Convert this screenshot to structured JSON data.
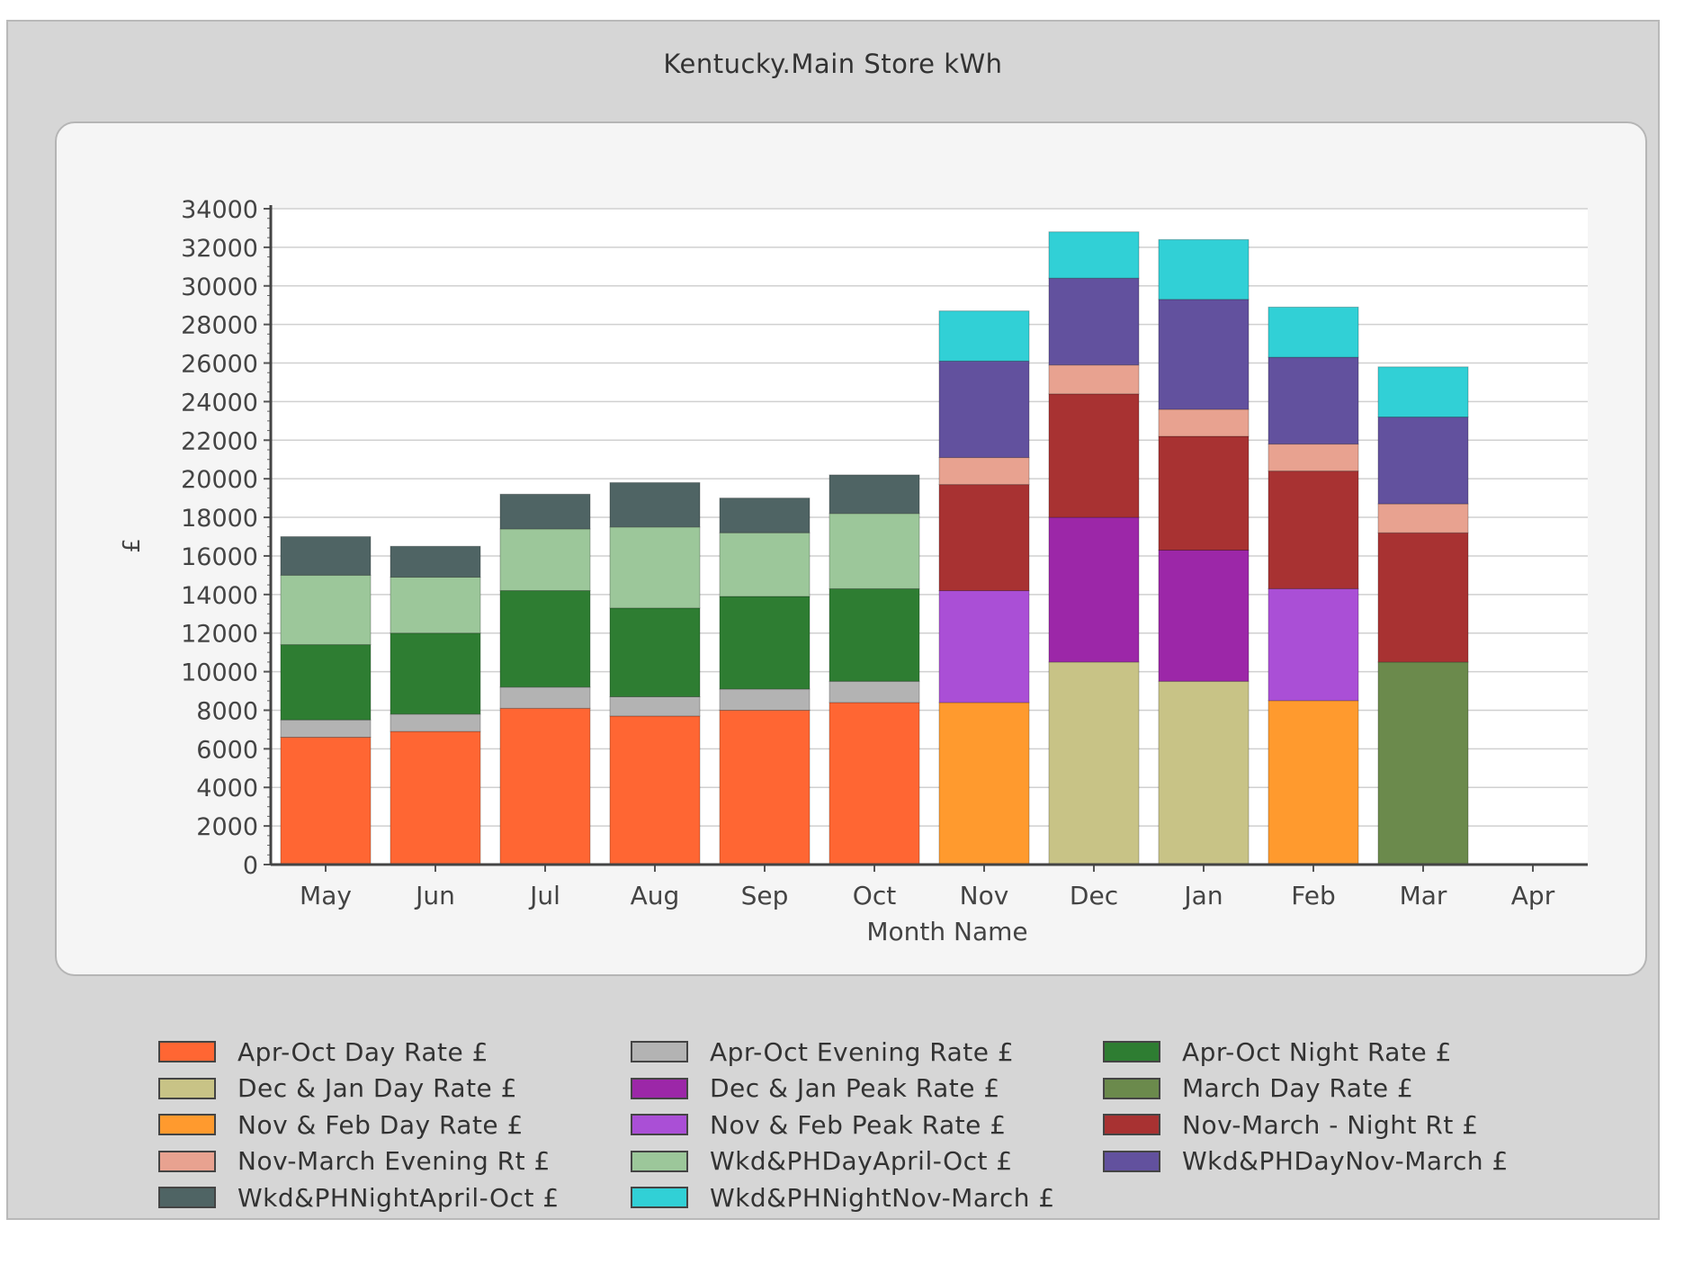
{
  "chart_data": {
    "type": "bar",
    "stacked": true,
    "title": "Kentucky.Main Store kWh",
    "xlabel": "Month Name",
    "ylabel": "£",
    "ylim": [
      0,
      34000
    ],
    "yticks": [
      0,
      2000,
      4000,
      6000,
      8000,
      10000,
      12000,
      14000,
      16000,
      18000,
      20000,
      22000,
      24000,
      26000,
      28000,
      30000,
      32000,
      34000
    ],
    "grid": true,
    "legend_position": "bottom",
    "categories": [
      "May",
      "Jun",
      "Jul",
      "Aug",
      "Sep",
      "Oct",
      "Nov",
      "Dec",
      "Jan",
      "Feb",
      "Mar",
      "Apr"
    ],
    "series": [
      {
        "name": "Apr-Oct Day Rate £",
        "color": "#ff6633",
        "values": [
          6600,
          6900,
          8100,
          7700,
          8000,
          8400,
          0,
          0,
          0,
          0,
          0,
          0
        ]
      },
      {
        "name": "Apr-Oct Evening Rate £",
        "color": "#b3b3b3",
        "values": [
          900,
          900,
          1100,
          1000,
          1100,
          1100,
          0,
          0,
          0,
          0,
          0,
          0
        ]
      },
      {
        "name": "Apr-Oct Night Rate £",
        "color": "#2e7d32",
        "values": [
          3900,
          4200,
          5000,
          4600,
          4800,
          4800,
          0,
          0,
          0,
          0,
          0,
          0
        ]
      },
      {
        "name": "Dec & Jan Day Rate £",
        "color": "#c8c386",
        "values": [
          0,
          0,
          0,
          0,
          0,
          0,
          0,
          10500,
          9500,
          0,
          0,
          0
        ]
      },
      {
        "name": "Dec & Jan Peak Rate £",
        "color": "#9c27a8",
        "values": [
          0,
          0,
          0,
          0,
          0,
          0,
          0,
          7500,
          6800,
          0,
          0,
          0
        ]
      },
      {
        "name": "March Day Rate £",
        "color": "#6b8a4c",
        "values": [
          0,
          0,
          0,
          0,
          0,
          0,
          0,
          0,
          0,
          0,
          10500,
          0
        ]
      },
      {
        "name": "Nov & Feb Day Rate £",
        "color": "#ff9a2e",
        "values": [
          0,
          0,
          0,
          0,
          0,
          0,
          8400,
          0,
          0,
          8500,
          0,
          0
        ]
      },
      {
        "name": "Nov & Feb Peak Rate £",
        "color": "#aa4fd6",
        "values": [
          0,
          0,
          0,
          0,
          0,
          0,
          5800,
          0,
          0,
          5800,
          0,
          0
        ]
      },
      {
        "name": "Nov-March - Night Rt £",
        "color": "#a83232",
        "values": [
          0,
          0,
          0,
          0,
          0,
          0,
          5500,
          6400,
          5900,
          6100,
          6700,
          0
        ]
      },
      {
        "name": "Nov-March Evening Rt £",
        "color": "#e8a290",
        "values": [
          0,
          0,
          0,
          0,
          0,
          0,
          1400,
          1500,
          1400,
          1400,
          1500,
          0
        ]
      },
      {
        "name": "Wkd&PHDayApril-Oct £",
        "color": "#9cc79a",
        "values": [
          3600,
          2900,
          3200,
          4200,
          3300,
          3900,
          0,
          0,
          0,
          0,
          0,
          0
        ]
      },
      {
        "name": "Wkd&PHDayNov-March £",
        "color": "#62519e",
        "values": [
          0,
          0,
          0,
          0,
          0,
          0,
          5000,
          4500,
          5700,
          4500,
          4500,
          0
        ]
      },
      {
        "name": "Wkd&PHNightApril-Oct £",
        "color": "#4f6464",
        "values": [
          2000,
          1600,
          1800,
          2300,
          1800,
          2000,
          0,
          0,
          0,
          0,
          0,
          0
        ]
      },
      {
        "name": "Wkd&PHNightNov-March £",
        "color": "#31d0d6",
        "values": [
          0,
          0,
          0,
          0,
          0,
          0,
          2600,
          2400,
          3100,
          2600,
          2600,
          0
        ]
      }
    ]
  }
}
